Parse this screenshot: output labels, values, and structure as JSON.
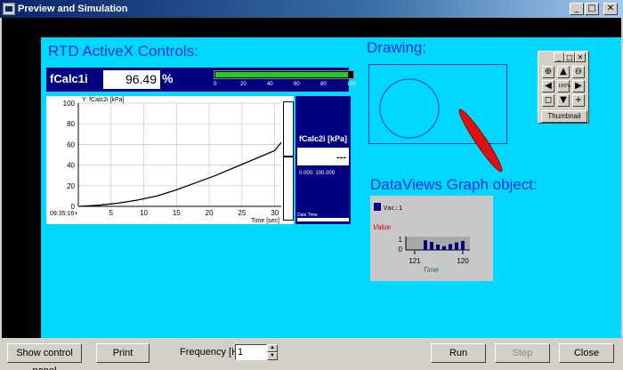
{
  "window": {
    "title": "Preview and Simulation",
    "controls": {
      "minimize": "_",
      "maximize": "□",
      "close": "✕"
    }
  },
  "canvas": {
    "rtd_heading": "RTD ActiveX Controls:",
    "drawing_heading": "Drawing:",
    "graph_heading": "DataViews Graph object:"
  },
  "numeric_display": {
    "label": "fCalc1i",
    "value": "96.49",
    "unit": "%",
    "bar_fraction": 0.965,
    "bar_scale": [
      "0",
      "20",
      "40",
      "60",
      "80",
      "100"
    ]
  },
  "trend": {
    "y_title": "Y: fCalc2i [kPa]",
    "x_title": "Time [sec]",
    "start_label": "09:35:16+",
    "strip_label": "fCalc2i [kPa]",
    "strip_value": "---",
    "strip_range": "0.000: 100.000",
    "strip_footer": "Date Time"
  },
  "chart_data": {
    "type": "line",
    "xlabel": "Time [sec]",
    "ylabel": "Y: fCalc2i [kPa]",
    "xlim": [
      0,
      31
    ],
    "ylim": [
      0,
      100
    ],
    "x_ticks": [
      "5",
      "10",
      "15",
      "20",
      "25",
      "30"
    ],
    "y_ticks": [
      "0",
      "20",
      "40",
      "60",
      "80",
      "100"
    ],
    "x": [
      0,
      3,
      6,
      9,
      12,
      15,
      18,
      21,
      24,
      27,
      30,
      31
    ],
    "y": [
      0,
      1,
      3,
      6,
      10,
      16,
      23,
      30,
      38,
      46,
      54,
      62
    ],
    "grid": true
  },
  "thumbnail": {
    "buttons": [
      "⊕",
      "▲",
      "⊖",
      "◀",
      "100%",
      "▶",
      "◻",
      "▼",
      "+"
    ],
    "label": "Thumbnail",
    "titlebar": {
      "minimize": "_",
      "maximize": "□",
      "close": "✕"
    }
  },
  "graph_object": {
    "legend": "Vac:1",
    "value_label": "Value",
    "time_label": "Time",
    "y_ticks": [
      "1",
      "0"
    ],
    "x_ticks": [
      "121",
      "120"
    ],
    "bars": [
      0.9,
      0.75,
      0.5,
      0.35,
      0.55,
      0.7,
      0.85
    ]
  },
  "toolbar": {
    "show_control_panel": "Show control panel",
    "print": "Print",
    "frequency_label": "Frequency [Hz]",
    "frequency_value": "1",
    "spin_up": "▲",
    "spin_down": "▼",
    "run": "Run",
    "step": "Step",
    "close": "Close"
  },
  "colors": {
    "canvas": "#00d8ff",
    "heading": "#1c2fe0",
    "panel_navy": "#000080",
    "ellipse": "#dd1111",
    "bar_fill": "#22cc22"
  }
}
